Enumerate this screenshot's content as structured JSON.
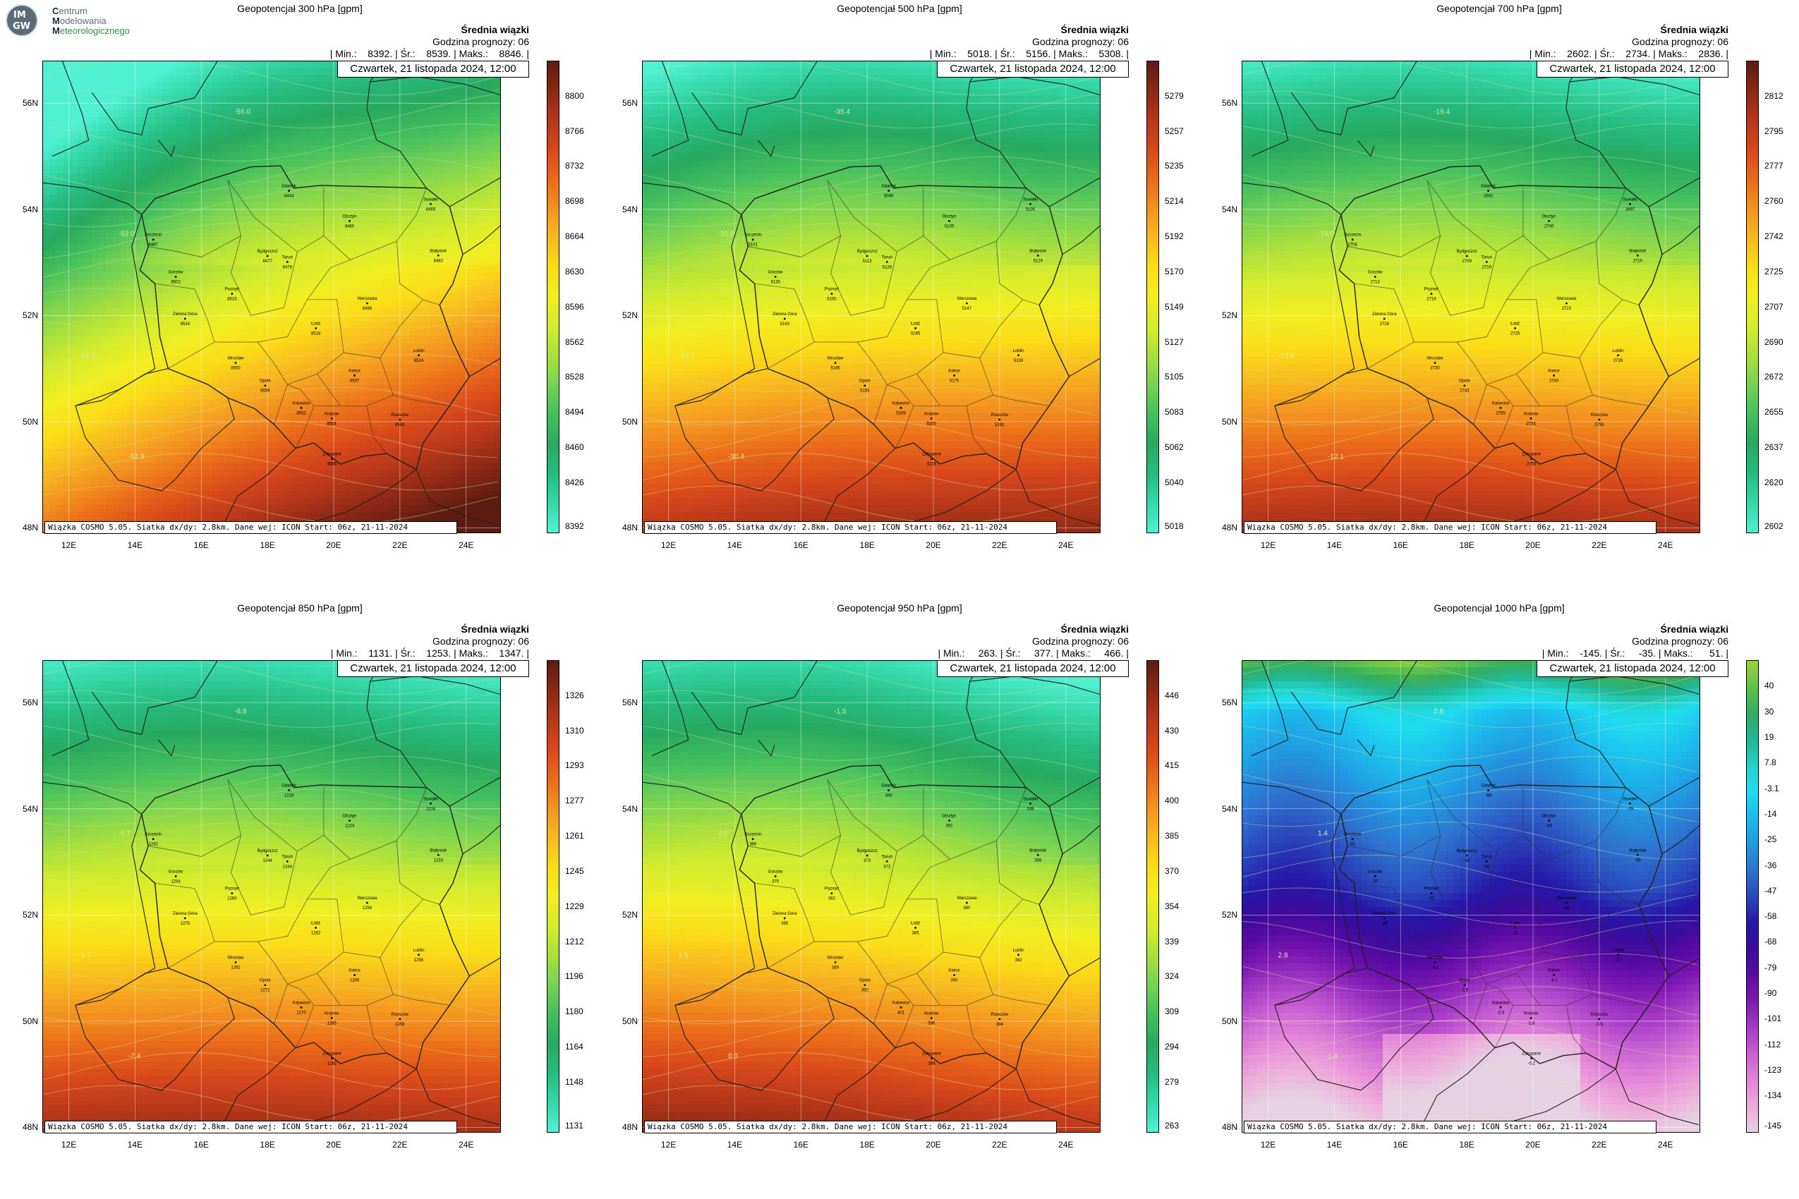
{
  "logo": {
    "badge_lines": [
      "IM",
      "GW"
    ],
    "lines": [
      {
        "first": "C",
        "rest": "entrum"
      },
      {
        "first": "M",
        "rest": "odelowania"
      },
      {
        "first": "M",
        "rest": "eteorologicznego"
      }
    ]
  },
  "summary_title": "Średnia wiązki",
  "forecast_hour": "Godzina prognozy: 06",
  "date": "Czwartek, 21 listopada 2024, 12:00",
  "footer": "Wiązka COSMO 5.05. Siatka dx/dy: 2.8km. Dane wej: ICON Start: 06z, 21-11-2024",
  "x_ticks": [
    "12E",
    "14E",
    "16E",
    "18E",
    "20E",
    "22E",
    "24E"
  ],
  "y_ticks": [
    "56N",
    "54N",
    "52N",
    "50N",
    "48N"
  ],
  "cities": [
    {
      "name": "Gdańsk",
      "lon": 18.65,
      "lat": 54.35
    },
    {
      "name": "Olsztyn",
      "lon": 20.48,
      "lat": 53.78
    },
    {
      "name": "Suwałki",
      "lon": 22.93,
      "lat": 54.1
    },
    {
      "name": "Szczecin",
      "lon": 14.55,
      "lat": 53.43
    },
    {
      "name": "Bydgoszcz",
      "lon": 18.0,
      "lat": 53.12
    },
    {
      "name": "Toruń",
      "lon": 18.6,
      "lat": 53.01
    },
    {
      "name": "Białystok",
      "lon": 23.16,
      "lat": 53.13
    },
    {
      "name": "Gorzów",
      "lon": 15.23,
      "lat": 52.73
    },
    {
      "name": "Poznań",
      "lon": 16.93,
      "lat": 52.41
    },
    {
      "name": "Warszawa",
      "lon": 21.01,
      "lat": 52.23
    },
    {
      "name": "Zielona Góra",
      "lon": 15.51,
      "lat": 51.94
    },
    {
      "name": "Łódź",
      "lon": 19.46,
      "lat": 51.76
    },
    {
      "name": "Lublin",
      "lon": 22.57,
      "lat": 51.25
    },
    {
      "name": "Wrocław",
      "lon": 17.04,
      "lat": 51.11
    },
    {
      "name": "Kielce",
      "lon": 20.63,
      "lat": 50.87
    },
    {
      "name": "Opole",
      "lon": 17.93,
      "lat": 50.68
    },
    {
      "name": "Katowice",
      "lon": 19.02,
      "lat": 50.26
    },
    {
      "name": "Kraków",
      "lon": 19.94,
      "lat": 50.06
    },
    {
      "name": "Rzeszów",
      "lon": 22.0,
      "lat": 50.04
    },
    {
      "name": "Zakopane",
      "lon": 19.95,
      "lat": 49.3
    }
  ],
  "panels": [
    {
      "title": "Geopotencjał 300 hPa [gpm]",
      "stats": "| Min.:    8392. | Śr.:    8539. | Maks.:    8846. |",
      "colorbar": {
        "ticks": [
          "8800",
          "8766",
          "8732",
          "8698",
          "8664",
          "8630",
          "8596",
          "8562",
          "8528",
          "8494",
          "8460",
          "8426",
          "8392"
        ],
        "colors": [
          "#5d1c12",
          "#8b2815",
          "#b6371a",
          "#d8481b",
          "#ea6a19",
          "#f39320",
          "#f8b91f",
          "#fbdd17",
          "#f1ee22",
          "#d4ec2c",
          "#a9e03c",
          "#76d253",
          "#44bf5e",
          "#27aa60",
          "#26bb80",
          "#34d8a8",
          "#4ff1d2"
        ]
      },
      "field": {
        "lon0": 12,
        "lat0": 56.9,
        "g": [
          0.25,
          -1.0
        ],
        "vmin": 8392,
        "vmax": 8846,
        "base": 8460,
        "wave": 0.4
      },
      "city_values": [
        "8444",
        "8460",
        "8469",
        "8487",
        "8477",
        "8478",
        "8482",
        "8502",
        "8515",
        "8498",
        "8534",
        "8518",
        "8524",
        "8550",
        "8537",
        "8559",
        "8552",
        "8554",
        "8553",
        "8585"
      ],
      "contour_labels": [
        "-56.0",
        "-52.0",
        "-48.0",
        "-51.9"
      ]
    },
    {
      "title": "Geopotencjał 500 hPa [gpm]",
      "stats": "| Min.:    5018. | Śr.:    5156. | Maks.:    5308. |",
      "colorbar": {
        "ticks": [
          "5279",
          "5257",
          "5235",
          "5214",
          "5192",
          "5170",
          "5149",
          "5127",
          "5105",
          "5083",
          "5062",
          "5040",
          "5018"
        ],
        "colors": [
          "#5d1c12",
          "#8b2815",
          "#b6371a",
          "#d8481b",
          "#ea6a19",
          "#f39320",
          "#f8b91f",
          "#fbdd17",
          "#f1ee22",
          "#d4ec2c",
          "#a9e03c",
          "#76d253",
          "#44bf5e",
          "#27aa60",
          "#26bb80",
          "#34d8a8",
          "#4ff1d2"
        ]
      },
      "field": {
        "lon0": 12,
        "lat0": 56.9,
        "g": [
          0.05,
          -1.0
        ],
        "vmin": 5018,
        "vmax": 5308,
        "base": 5090,
        "wave": 0.3
      },
      "city_values": [
        "5096",
        "5105",
        "5105",
        "5101",
        "5113",
        "5128",
        "5129",
        "5135",
        "5150",
        "5147",
        "5163",
        "5165",
        "5159",
        "5186",
        "5175",
        "5193",
        "5199",
        "5200",
        "5191",
        "5216"
      ],
      "contour_labels": [
        "-35.4",
        "-31.8",
        "-28.2",
        "-30.4"
      ]
    },
    {
      "title": "Geopotencjał 700 hPa [gpm]",
      "stats": "| Min.:    2602. | Śr.:    2734. | Maks.:    2836. |",
      "colorbar": {
        "ticks": [
          "2812",
          "2795",
          "2777",
          "2760",
          "2742",
          "2725",
          "2707",
          "2690",
          "2672",
          "2655",
          "2637",
          "2620",
          "2602"
        ],
        "colors": [
          "#5d1c12",
          "#8b2815",
          "#b6371a",
          "#d8481b",
          "#ea6a19",
          "#f39320",
          "#f8b91f",
          "#fbdd17",
          "#f1ee22",
          "#d4ec2c",
          "#a9e03c",
          "#76d253",
          "#44bf5e",
          "#27aa60",
          "#26bb80",
          "#34d8a8",
          "#4ff1d2"
        ]
      },
      "field": {
        "lon0": 12,
        "lat0": 56.9,
        "g": [
          0.0,
          -1.0
        ],
        "vmin": 2602,
        "vmax": 2836,
        "base": 2680,
        "wave": 0.25
      },
      "city_values": [
        "2692",
        "2700",
        "2697",
        "2704",
        "2709",
        "2719",
        "2710",
        "2713",
        "2719",
        "2723",
        "2728",
        "2725",
        "2729",
        "2730",
        "2740",
        "2743",
        "2755",
        "2734",
        "2755",
        "2750"
      ],
      "contour_labels": [
        "-19.4",
        "-16.0",
        "-13.8",
        "-12.1"
      ]
    },
    {
      "title": "Geopotencjał 850 hPa [gpm]",
      "stats": "| Min.:    1131. | Śr.:    1253. | Maks.:    1347. |",
      "colorbar": {
        "ticks": [
          "1326",
          "1310",
          "1293",
          "1277",
          "1261",
          "1245",
          "1229",
          "1212",
          "1196",
          "1180",
          "1164",
          "1148",
          "1131"
        ],
        "colors": [
          "#5d1c12",
          "#8b2815",
          "#b6371a",
          "#d8481b",
          "#ea6a19",
          "#f39320",
          "#f8b91f",
          "#fbdd17",
          "#f1ee22",
          "#d4ec2c",
          "#a9e03c",
          "#76d253",
          "#44bf5e",
          "#27aa60",
          "#26bb80",
          "#34d8a8",
          "#4ff1d2"
        ]
      },
      "field": {
        "lon0": 12,
        "lat0": 56.9,
        "g": [
          0.0,
          -1.0
        ],
        "vmin": 1131,
        "vmax": 1347,
        "base": 1210,
        "wave": 0.25
      },
      "city_values": [
        "1219",
        "1224",
        "1218",
        "1242",
        "1244",
        "1244",
        "1233",
        "1254",
        "1260",
        "1256",
        "1275",
        "1262",
        "1256",
        "1262",
        "1266",
        "1272",
        "1270",
        "1265",
        "1256",
        "1262"
      ],
      "contour_labels": [
        "-8.9",
        "-6.7",
        "-4.7",
        "-7.4"
      ]
    },
    {
      "title": "Geopotencjał 950 hPa [gpm]",
      "stats": "| Min.:     263. | Śr.:     377. | Maks.:     466. |",
      "colorbar": {
        "ticks": [
          "446",
          "430",
          "415",
          "400",
          "385",
          "370",
          "354",
          "339",
          "324",
          "309",
          "294",
          "279",
          "263"
        ],
        "colors": [
          "#5d1c12",
          "#8b2815",
          "#b6371a",
          "#d8481b",
          "#ea6a19",
          "#f39320",
          "#f8b91f",
          "#fbdd17",
          "#f1ee22",
          "#d4ec2c",
          "#a9e03c",
          "#76d253",
          "#44bf5e",
          "#27aa60",
          "#26bb80",
          "#34d8a8",
          "#4ff1d2"
        ]
      },
      "field": {
        "lon0": 12,
        "lat0": 56.9,
        "g": [
          -0.05,
          -1.0
        ],
        "vmin": 263,
        "vmax": 466,
        "base": 330,
        "wave": 0.25
      },
      "city_values": [
        "343",
        "351",
        "339",
        "366",
        "373",
        "372",
        "356",
        "375",
        "382",
        "380",
        "395",
        "385",
        "382",
        "389",
        "390",
        "392",
        "401",
        "396",
        "384",
        "388"
      ],
      "contour_labels": [
        "-1.5",
        "0.0",
        "1.5",
        "0.0"
      ]
    },
    {
      "title": "Geopotencjał 1000 hPa [gpm]",
      "stats": "| Min.:    -145. | Śr.:     -35. | Maks.:      51. |",
      "colorbar": {
        "ticks": [
          "40",
          "30",
          "19",
          "7.8",
          "-3.1",
          "-14",
          "-25",
          "-36",
          "-47",
          "-58",
          "-68",
          "-79",
          "-90",
          "-101",
          "-112",
          "-123",
          "-134",
          "-145"
        ],
        "colors": [
          "#99d43a",
          "#5fc24c",
          "#34ad5e",
          "#23b692",
          "#22d3c8",
          "#1fdcf0",
          "#1cbcec",
          "#2199e2",
          "#2e73cf",
          "#2a48bd",
          "#2618a8",
          "#3a0c9c",
          "#5a0ba6",
          "#8019b4",
          "#a53ac6",
          "#c85fd2",
          "#e384d8",
          "#eea9db",
          "#e6d0e2"
        ]
      },
      "field": {
        "lon0": 12,
        "lat0": 56.9,
        "g": [
          0,
          -1
        ],
        "vmin": -145,
        "vmax": 51,
        "custom": "geo1000"
      },
      "city_values": [
        "-86",
        "-83",
        "-79",
        "-61",
        "-62",
        "-61",
        "-65",
        "-37",
        "-31",
        "-45",
        "-28",
        "-21",
        "-12",
        "-8.5",
        "-4.3",
        "-2.5",
        "-2.3",
        "-1.8",
        "-0.5",
        "-0.2"
      ],
      "contour_labels": [
        "2.8",
        "1.4",
        "2.8",
        "1.4"
      ]
    }
  ]
}
